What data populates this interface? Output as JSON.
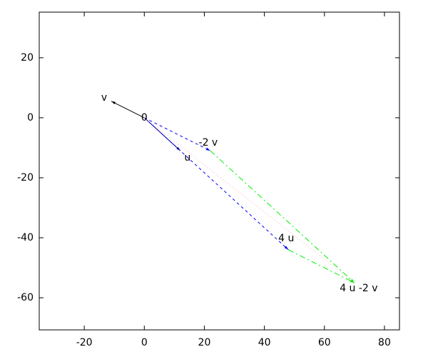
{
  "chart_data": {
    "type": "vector",
    "xlim": [
      -35,
      85
    ],
    "ylim": [
      -70.7,
      35.2
    ],
    "xticks": [
      -20,
      0,
      20,
      40,
      60,
      80
    ],
    "yticks": [
      -60,
      -40,
      -20,
      0,
      20
    ],
    "arrows": [
      {
        "x": [
          0,
          -11
        ],
        "y": [
          0,
          5.5
        ],
        "color": "#000000",
        "style": "solid",
        "head": true
      },
      {
        "x": [
          0,
          12
        ],
        "y": [
          0,
          -11
        ],
        "color": "#000080",
        "style": "solid",
        "head": true
      },
      {
        "x": [
          0,
          22
        ],
        "y": [
          0,
          -11
        ],
        "color": "#0000ff",
        "style": "dashed",
        "head": true
      },
      {
        "x": [
          0,
          48
        ],
        "y": [
          0,
          -44
        ],
        "color": "#0000ff",
        "style": "dashed",
        "head": true
      },
      {
        "x": [
          22,
          70
        ],
        "y": [
          -11,
          -55
        ],
        "color": "#00ee00",
        "style": "dashdot",
        "head": true
      },
      {
        "x": [
          48,
          70
        ],
        "y": [
          -44,
          -55
        ],
        "color": "#00ee00",
        "style": "dashdot",
        "head": true
      },
      {
        "x": [
          0,
          70
        ],
        "y": [
          0,
          -55
        ],
        "color": "#ffb0b0",
        "style": "dotted",
        "head": false
      }
    ],
    "labels": [
      {
        "text": "v",
        "x": -11,
        "y": 5.5
      },
      {
        "text": "0",
        "x": 0,
        "y": 0
      },
      {
        "text": "u",
        "x": 12,
        "y": -11
      },
      {
        "text": "-2 v",
        "x": 22,
        "y": -11
      },
      {
        "text": "4 u",
        "x": 48,
        "y": -44
      },
      {
        "text": "4 u -2 v",
        "x": 70,
        "y": -55
      }
    ]
  }
}
